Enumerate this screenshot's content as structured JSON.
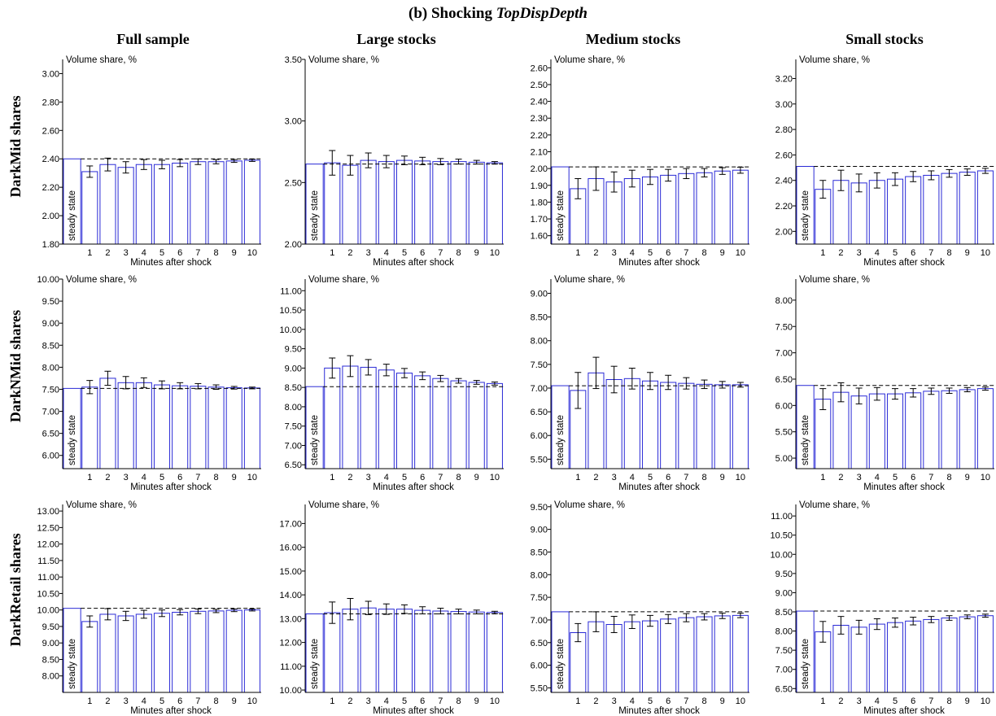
{
  "figure": {
    "title_prefix": "(b) Shocking ",
    "title_italic": "TopDispDepth",
    "columns": [
      "Full sample",
      "Large stocks",
      "Medium stocks",
      "Small stocks"
    ],
    "rows": [
      "DarkMid shares",
      "DarkNMid shares",
      "DarkRetail shares"
    ]
  },
  "colors": {
    "bar_edge": "#2a2ad6",
    "steady_edge": "#2a2ad6",
    "error": "#000000",
    "baseline": "#000000"
  },
  "chart_data": [
    {
      "type": "bar",
      "row": "DarkMid shares",
      "column": "Full sample",
      "ylabel": "Volume share, %",
      "xlabel": "Minutes after shock",
      "steady_label": "steady state",
      "categories": [
        "1",
        "2",
        "3",
        "4",
        "5",
        "6",
        "7",
        "8",
        "9",
        "10"
      ],
      "steady_state": 2.4,
      "values": [
        2.31,
        2.36,
        2.34,
        2.36,
        2.36,
        2.37,
        2.38,
        2.38,
        2.385,
        2.39
      ],
      "errors": [
        0.04,
        0.045,
        0.04,
        0.035,
        0.03,
        0.025,
        0.02,
        0.015,
        0.01,
        0.008
      ],
      "ylim": [
        1.8,
        3.1
      ],
      "yticks": [
        1.8,
        2.0,
        2.2,
        2.4,
        2.6,
        2.8,
        3.0
      ]
    },
    {
      "type": "bar",
      "row": "DarkMid shares",
      "column": "Large stocks",
      "ylabel": "Volume share, %",
      "xlabel": "Minutes after shock",
      "steady_label": "steady state",
      "categories": [
        "1",
        "2",
        "3",
        "4",
        "5",
        "6",
        "7",
        "8",
        "9",
        "10"
      ],
      "steady_state": 2.65,
      "values": [
        2.66,
        2.64,
        2.68,
        2.67,
        2.68,
        2.675,
        2.67,
        2.67,
        2.665,
        2.66
      ],
      "errors": [
        0.1,
        0.08,
        0.06,
        0.05,
        0.035,
        0.03,
        0.025,
        0.02,
        0.015,
        0.01
      ],
      "ylim": [
        2.0,
        3.5
      ],
      "yticks": [
        2.0,
        2.5,
        3.0,
        3.5
      ]
    },
    {
      "type": "bar",
      "row": "DarkMid shares",
      "column": "Medium stocks",
      "ylabel": "Volume share, %",
      "xlabel": "Minutes after shock",
      "steady_label": "steady state",
      "categories": [
        "1",
        "2",
        "3",
        "4",
        "5",
        "6",
        "7",
        "8",
        "9",
        "10"
      ],
      "steady_state": 2.01,
      "values": [
        1.88,
        1.94,
        1.92,
        1.94,
        1.95,
        1.96,
        1.97,
        1.975,
        1.985,
        1.99
      ],
      "errors": [
        0.06,
        0.07,
        0.06,
        0.05,
        0.045,
        0.035,
        0.03,
        0.025,
        0.02,
        0.018
      ],
      "ylim": [
        1.55,
        2.65
      ],
      "yticks": [
        1.6,
        1.7,
        1.8,
        1.9,
        2.0,
        2.1,
        2.2,
        2.3,
        2.4,
        2.5,
        2.6
      ]
    },
    {
      "type": "bar",
      "row": "DarkMid shares",
      "column": "Small stocks",
      "ylabel": "Volume share, %",
      "xlabel": "Minutes after shock",
      "steady_label": "steady state",
      "categories": [
        "1",
        "2",
        "3",
        "4",
        "5",
        "6",
        "7",
        "8",
        "9",
        "10"
      ],
      "steady_state": 2.51,
      "values": [
        2.33,
        2.4,
        2.38,
        2.4,
        2.41,
        2.43,
        2.44,
        2.455,
        2.465,
        2.475
      ],
      "errors": [
        0.07,
        0.08,
        0.07,
        0.06,
        0.05,
        0.04,
        0.035,
        0.03,
        0.025,
        0.02
      ],
      "ylim": [
        1.9,
        3.35
      ],
      "yticks": [
        2.0,
        2.2,
        2.4,
        2.6,
        2.8,
        3.0,
        3.2
      ]
    },
    {
      "type": "bar",
      "row": "DarkNMid shares",
      "column": "Full sample",
      "ylabel": "Volume share, %",
      "xlabel": "Minutes after shock",
      "steady_label": "steady state",
      "categories": [
        "1",
        "2",
        "3",
        "4",
        "5",
        "6",
        "7",
        "8",
        "9",
        "10"
      ],
      "steady_state": 7.52,
      "values": [
        7.55,
        7.75,
        7.65,
        7.65,
        7.6,
        7.58,
        7.57,
        7.55,
        7.535,
        7.53
      ],
      "errors": [
        0.15,
        0.16,
        0.14,
        0.11,
        0.09,
        0.07,
        0.06,
        0.05,
        0.03,
        0.02
      ],
      "ylim": [
        5.7,
        10.0
      ],
      "yticks": [
        6.0,
        6.5,
        7.0,
        7.5,
        8.0,
        8.5,
        9.0,
        9.5,
        10.0
      ]
    },
    {
      "type": "bar",
      "row": "DarkNMid shares",
      "column": "Large stocks",
      "ylabel": "Volume share, %",
      "xlabel": "Minutes after shock",
      "steady_label": "steady state",
      "categories": [
        "1",
        "2",
        "3",
        "4",
        "5",
        "6",
        "7",
        "8",
        "9",
        "10"
      ],
      "steady_state": 8.52,
      "values": [
        9.0,
        9.05,
        9.02,
        8.95,
        8.87,
        8.8,
        8.73,
        8.67,
        8.63,
        8.6
      ],
      "errors": [
        0.26,
        0.27,
        0.2,
        0.15,
        0.12,
        0.1,
        0.08,
        0.06,
        0.05,
        0.04
      ],
      "ylim": [
        6.4,
        11.3
      ],
      "yticks": [
        6.5,
        7.0,
        7.5,
        8.0,
        8.5,
        9.0,
        9.5,
        10.0,
        10.5,
        11.0
      ]
    },
    {
      "type": "bar",
      "row": "DarkNMid shares",
      "column": "Medium stocks",
      "ylabel": "Volume share, %",
      "xlabel": "Minutes after shock",
      "steady_label": "steady state",
      "categories": [
        "1",
        "2",
        "3",
        "4",
        "5",
        "6",
        "7",
        "8",
        "9",
        "10"
      ],
      "steady_state": 7.05,
      "values": [
        6.95,
        7.32,
        7.18,
        7.2,
        7.15,
        7.12,
        7.1,
        7.08,
        7.07,
        7.07
      ],
      "errors": [
        0.38,
        0.33,
        0.28,
        0.22,
        0.18,
        0.15,
        0.12,
        0.09,
        0.07,
        0.05
      ],
      "ylim": [
        5.3,
        9.3
      ],
      "yticks": [
        5.5,
        6.0,
        6.5,
        7.0,
        7.5,
        8.0,
        8.5,
        9.0
      ]
    },
    {
      "type": "bar",
      "row": "DarkNMid shares",
      "column": "Small stocks",
      "ylabel": "Volume share, %",
      "xlabel": "Minutes after shock",
      "steady_label": "steady state",
      "categories": [
        "1",
        "2",
        "3",
        "4",
        "5",
        "6",
        "7",
        "8",
        "9",
        "10"
      ],
      "steady_state": 6.38,
      "values": [
        6.12,
        6.25,
        6.18,
        6.22,
        6.22,
        6.24,
        6.27,
        6.28,
        6.3,
        6.32
      ],
      "errors": [
        0.2,
        0.18,
        0.15,
        0.12,
        0.1,
        0.08,
        0.06,
        0.05,
        0.04,
        0.03
      ],
      "ylim": [
        4.8,
        8.4
      ],
      "yticks": [
        5.0,
        5.5,
        6.0,
        6.5,
        7.0,
        7.5,
        8.0
      ]
    },
    {
      "type": "bar",
      "row": "DarkRetail shares",
      "column": "Full sample",
      "ylabel": "Volume share, %",
      "xlabel": "Minutes after shock",
      "steady_label": "steady state",
      "categories": [
        "1",
        "2",
        "3",
        "4",
        "5",
        "6",
        "7",
        "8",
        "9",
        "10"
      ],
      "steady_state": 10.05,
      "values": [
        9.65,
        9.87,
        9.82,
        9.87,
        9.9,
        9.93,
        9.96,
        9.97,
        9.99,
        10.0
      ],
      "errors": [
        0.17,
        0.17,
        0.14,
        0.12,
        0.1,
        0.08,
        0.07,
        0.05,
        0.04,
        0.03
      ],
      "ylim": [
        7.5,
        13.2
      ],
      "yticks": [
        8.0,
        8.5,
        9.0,
        9.5,
        10.0,
        10.5,
        11.0,
        11.5,
        12.0,
        12.5,
        13.0
      ]
    },
    {
      "type": "bar",
      "row": "DarkRetail shares",
      "column": "Large stocks",
      "ylabel": "Volume share, %",
      "xlabel": "Minutes after shock",
      "steady_label": "steady state",
      "categories": [
        "1",
        "2",
        "3",
        "4",
        "5",
        "6",
        "7",
        "8",
        "9",
        "10"
      ],
      "steady_state": 13.2,
      "values": [
        13.25,
        13.4,
        13.45,
        13.4,
        13.4,
        13.35,
        13.32,
        13.3,
        13.28,
        13.26
      ],
      "errors": [
        0.45,
        0.45,
        0.28,
        0.22,
        0.18,
        0.15,
        0.12,
        0.1,
        0.08,
        0.05
      ],
      "ylim": [
        9.9,
        17.8
      ],
      "yticks": [
        10.0,
        11.0,
        12.0,
        13.0,
        14.0,
        15.0,
        16.0,
        17.0
      ]
    },
    {
      "type": "bar",
      "row": "DarkRetail shares",
      "column": "Medium stocks",
      "ylabel": "Volume share, %",
      "xlabel": "Minutes after shock",
      "steady_label": "steady state",
      "categories": [
        "1",
        "2",
        "3",
        "4",
        "5",
        "6",
        "7",
        "8",
        "9",
        "10"
      ],
      "steady_state": 7.18,
      "values": [
        6.72,
        6.96,
        6.9,
        6.96,
        6.98,
        7.02,
        7.05,
        7.07,
        7.09,
        7.1
      ],
      "errors": [
        0.2,
        0.22,
        0.18,
        0.15,
        0.12,
        0.1,
        0.09,
        0.07,
        0.06,
        0.05
      ],
      "ylim": [
        5.4,
        9.55
      ],
      "yticks": [
        5.5,
        6.0,
        6.5,
        7.0,
        7.5,
        8.0,
        8.5,
        9.0,
        9.5
      ]
    },
    {
      "type": "bar",
      "row": "DarkRetail shares",
      "column": "Small stocks",
      "ylabel": "Volume share, %",
      "xlabel": "Minutes after shock",
      "steady_label": "steady state",
      "categories": [
        "1",
        "2",
        "3",
        "4",
        "5",
        "6",
        "7",
        "8",
        "9",
        "10"
      ],
      "steady_state": 8.52,
      "values": [
        7.98,
        8.15,
        8.1,
        8.18,
        8.22,
        8.26,
        8.3,
        8.34,
        8.37,
        8.4
      ],
      "errors": [
        0.27,
        0.23,
        0.18,
        0.14,
        0.12,
        0.1,
        0.08,
        0.06,
        0.05,
        0.04
      ],
      "ylim": [
        6.4,
        11.3
      ],
      "yticks": [
        6.5,
        7.0,
        7.5,
        8.0,
        8.5,
        9.0,
        9.5,
        10.0,
        10.5,
        11.0
      ]
    }
  ]
}
